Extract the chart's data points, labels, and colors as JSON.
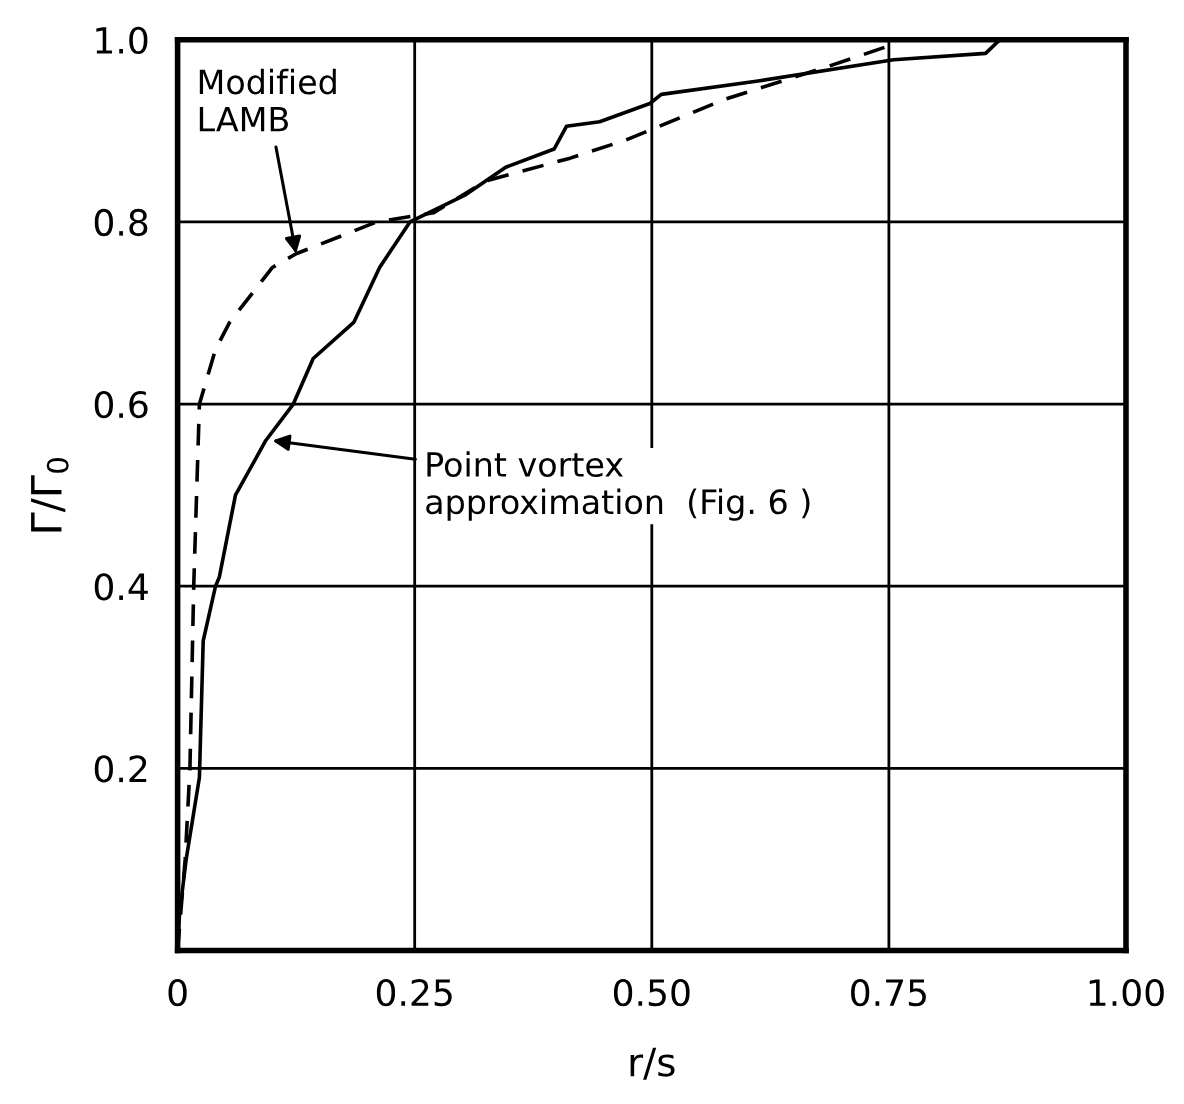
{
  "chart_data": {
    "type": "line",
    "xlabel": "r/s",
    "ylabel": "Γ/Γ$_{0}$",
    "xlim": [
      0,
      1.0
    ],
    "ylim": [
      0,
      1.0
    ],
    "xticks": [
      0,
      0.25,
      {
        "value": 0.5,
        "label": "0.50"
      },
      0.75,
      {
        "value": 1.0,
        "label": "1.00"
      }
    ],
    "yticks": [
      0.2,
      0.4,
      0.6,
      0.8,
      {
        "value": 1.0,
        "label": "1.0"
      }
    ],
    "grid": true,
    "legend": false,
    "marker": "none",
    "series": [
      {
        "color": "#000000",
        "line_style": "solid",
        "x": [
          0,
          0.002,
          0.009,
          0.023,
          0.027,
          0.04,
          0.044,
          0.061,
          0.093,
          0.122,
          0.143,
          0.186,
          0.213,
          0.245,
          0.304,
          0.346,
          0.397,
          0.41,
          0.445,
          0.498,
          0.51,
          0.614,
          0.755,
          0.852,
          0.867
        ],
        "values": [
          0,
          0.04,
          0.1,
          0.19,
          0.34,
          0.4,
          0.41,
          0.5,
          0.56,
          0.6,
          0.65,
          0.69,
          0.75,
          0.8,
          0.83,
          0.86,
          0.88,
          0.905,
          0.91,
          0.93,
          0.94,
          0.955,
          0.978,
          0.985,
          1.0
        ]
      },
      {
        "color": "#000000",
        "line_style": "dashed",
        "x": [
          0,
          0.008,
          0.013,
          0.017,
          0.023,
          0.04,
          0.055,
          0.1,
          0.125,
          0.21,
          0.27,
          0.325,
          0.414,
          0.473,
          0.578,
          0.684,
          0.755
        ],
        "values": [
          0,
          0.1,
          0.2,
          0.4,
          0.6,
          0.66,
          0.69,
          0.75,
          0.765,
          0.8,
          0.81,
          0.845,
          0.87,
          0.89,
          0.935,
          0.97,
          0.995
        ]
      }
    ],
    "annotations": [
      {
        "text": "Modified\nLAMB",
        "x": 0.125,
        "y": 0.765
      },
      {
        "text": "Point vortex\napproximation  (Fig. 6 )",
        "x": 0.1,
        "y": 0.56
      }
    ]
  }
}
